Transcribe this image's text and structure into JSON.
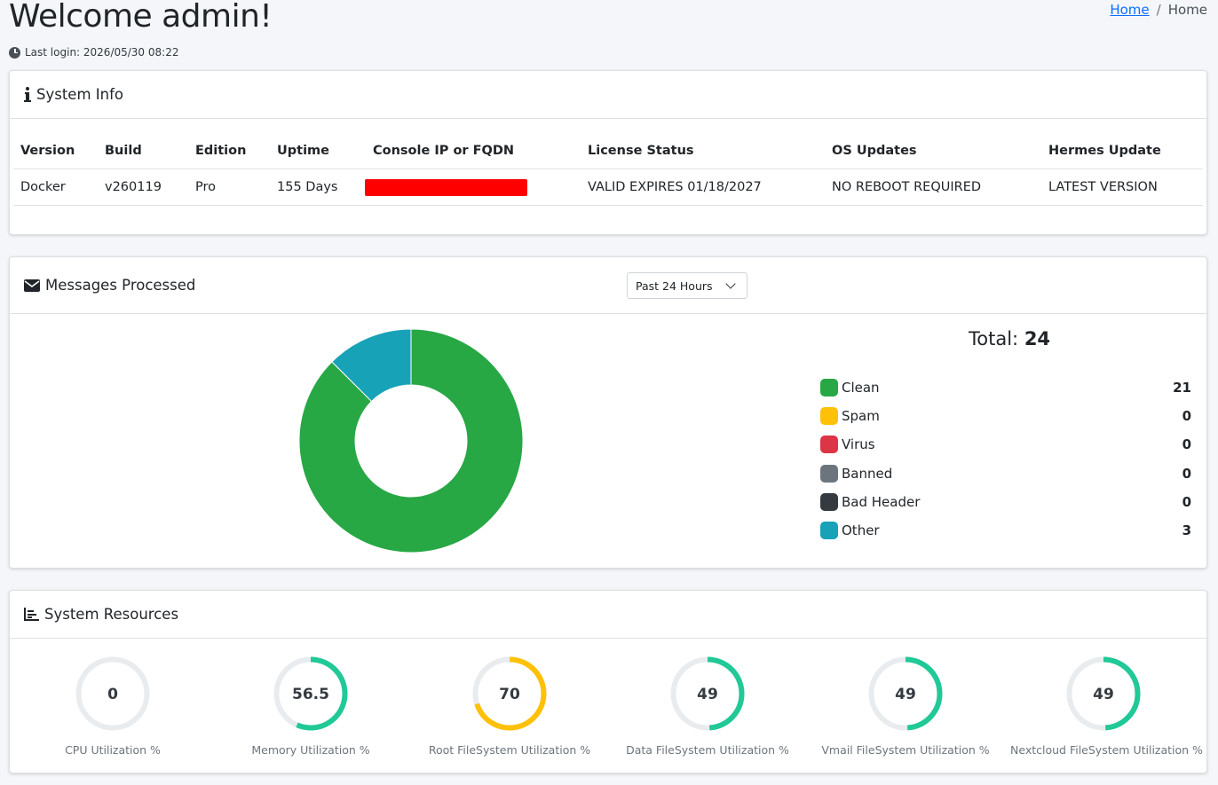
{
  "header": {
    "title": "Welcome admin!",
    "last_login": "Last login: 2026/05/30 08:22"
  },
  "breadcrumb": {
    "home_link": "Home",
    "separator": "/",
    "current": "Home"
  },
  "system_info": {
    "title": "System Info",
    "columns": [
      "Version",
      "Build",
      "Edition",
      "Uptime",
      "Console IP or FQDN",
      "License Status",
      "OS Updates",
      "Hermes Update"
    ],
    "row": {
      "version": "Docker",
      "build": "v260119",
      "edition": "Pro",
      "uptime": "155 Days",
      "license": "VALID EXPIRES 01/18/2027",
      "os_updates": "NO REBOOT REQUIRED",
      "hermes_update": "LATEST VERSION"
    }
  },
  "messages": {
    "title": "Messages Processed",
    "range_selected": "Past 24 Hours",
    "total_label": "Total:",
    "total_value": "24"
  },
  "chart_data": {
    "type": "pie",
    "categories": [
      "Clean",
      "Spam",
      "Virus",
      "Banned",
      "Bad Header",
      "Other"
    ],
    "values": [
      21,
      0,
      0,
      0,
      0,
      3
    ],
    "colors": [
      "#28a745",
      "#ffc107",
      "#dc3545",
      "#6c757d",
      "#343a40",
      "#17a2b8"
    ],
    "legend_placement": "right"
  },
  "resources": {
    "title": "System Resources",
    "gauges": [
      {
        "value": "0",
        "fraction": 0,
        "label": "CPU Utilization %",
        "color": "#20c997"
      },
      {
        "value": "56.5",
        "fraction": 0.565,
        "label": "Memory Utilization %",
        "color": "#20c997"
      },
      {
        "value": "70",
        "fraction": 0.7,
        "label": "Root FileSystem Utilization %",
        "color": "#ffc107"
      },
      {
        "value": "49",
        "fraction": 0.49,
        "label": "Data FileSystem Utilization %",
        "color": "#20c997"
      },
      {
        "value": "49",
        "fraction": 0.49,
        "label": "Vmail FileSystem Utilization %",
        "color": "#20c997"
      },
      {
        "value": "49",
        "fraction": 0.49,
        "label": "Nextcloud FileSystem Utilization %",
        "color": "#20c997"
      }
    ]
  }
}
